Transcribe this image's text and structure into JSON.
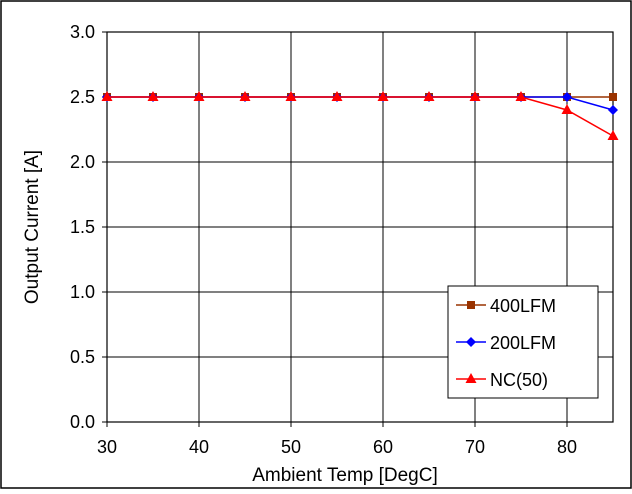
{
  "chart_data": {
    "type": "line",
    "title": "",
    "xlabel": "Ambient Temp [DegC]",
    "ylabel": "Output Current [A]",
    "xlim": [
      30,
      85
    ],
    "ylim": [
      0,
      3.0
    ],
    "xticks": [
      "30",
      "40",
      "50",
      "60",
      "70",
      "80"
    ],
    "yticks": [
      "0.0",
      "0.5",
      "1.0",
      "1.5",
      "2.0",
      "2.5",
      "3.0"
    ],
    "grid": true,
    "legend_position": "bottom-right",
    "x": [
      30,
      35,
      40,
      45,
      50,
      55,
      60,
      65,
      70,
      75,
      80,
      85
    ],
    "series": [
      {
        "name": "400LFM",
        "color": "#993300",
        "marker": "square",
        "values": [
          2.5,
          2.5,
          2.5,
          2.5,
          2.5,
          2.5,
          2.5,
          2.5,
          2.5,
          2.5,
          2.5,
          2.5
        ]
      },
      {
        "name": "200LFM",
        "color": "#0000ff",
        "marker": "diamond",
        "values": [
          2.5,
          2.5,
          2.5,
          2.5,
          2.5,
          2.5,
          2.5,
          2.5,
          2.5,
          2.5,
          2.5,
          2.4
        ]
      },
      {
        "name": "NC(50)",
        "color": "#ff0000",
        "marker": "triangle",
        "values": [
          2.5,
          2.5,
          2.5,
          2.5,
          2.5,
          2.5,
          2.5,
          2.5,
          2.5,
          2.5,
          2.4,
          2.2
        ]
      }
    ]
  }
}
